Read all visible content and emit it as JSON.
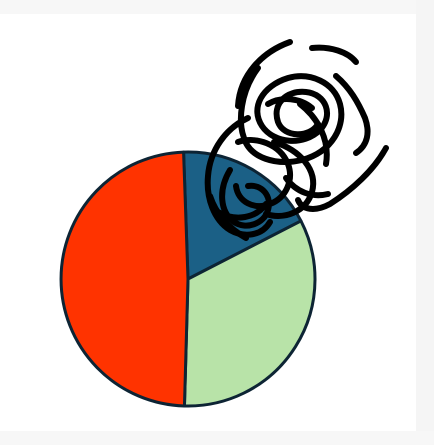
{
  "chart_data": {
    "type": "pie",
    "title": "",
    "legend": "none",
    "start_angle_deg": -2,
    "direction": "clockwise",
    "slices": [
      {
        "label": "",
        "value": 18,
        "color": "#1b6086"
      },
      {
        "label": "",
        "value": 33,
        "color": "#b8e3a8"
      },
      {
        "label": "",
        "value": 49,
        "color": "#ff3300"
      }
    ]
  },
  "colors": {
    "outline": "#0d2434",
    "scribble": "#000000",
    "background": "#ffffff"
  },
  "annotations": {
    "overlay_icon": "handwritten-scribble-icon"
  }
}
